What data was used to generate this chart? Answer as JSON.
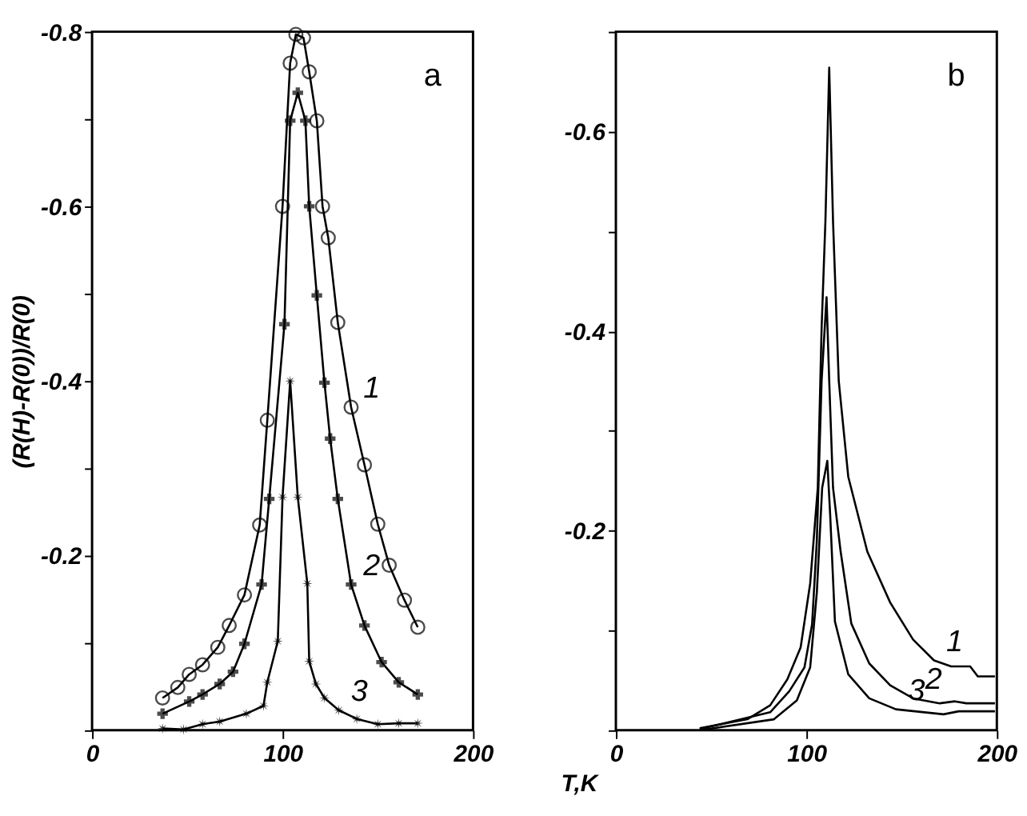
{
  "chart_data": [
    {
      "type": "line",
      "ylabel": "(R(H)-R(0))/R(0)",
      "xlim": [
        0,
        200
      ],
      "ylim": [
        0,
        -0.8
      ],
      "xticks": [
        0,
        100,
        200
      ],
      "yticks": [
        {
          "value": 0,
          "label": null
        },
        {
          "value": -0.1,
          "label": null
        },
        -0.2,
        {
          "value": -0.3,
          "label": null
        },
        -0.4,
        {
          "value": -0.5,
          "label": null
        },
        -0.6,
        {
          "value": -0.7,
          "label": null
        },
        -0.8
      ],
      "grid": false,
      "line_style": "solid",
      "series": [
        {
          "name": "1",
          "color": "#000000",
          "marker": "circle",
          "x": [
            37,
            45,
            51,
            58,
            66,
            72,
            80,
            88,
            92,
            100,
            104,
            107,
            111,
            114,
            118,
            121,
            124,
            129,
            136,
            143,
            150,
            156,
            164,
            171
          ],
          "values": [
            -0.037,
            -0.049,
            -0.064,
            -0.075,
            -0.095,
            -0.12,
            -0.155,
            -0.235,
            -0.355,
            -0.6,
            -0.764,
            -0.797,
            -0.793,
            -0.754,
            -0.698,
            -0.6,
            -0.564,
            -0.467,
            -0.37,
            -0.304,
            -0.236,
            -0.189,
            -0.149,
            -0.118
          ]
        },
        {
          "name": "2",
          "color": "#000000",
          "marker": "cross",
          "x": [
            37,
            51,
            58,
            67,
            74,
            80,
            89,
            93,
            101,
            104,
            108,
            112,
            114,
            118,
            122,
            125,
            129,
            136,
            143,
            152,
            161,
            171
          ],
          "values": [
            -0.019,
            -0.033,
            -0.041,
            -0.053,
            -0.067,
            -0.099,
            -0.167,
            -0.265,
            -0.465,
            -0.698,
            -0.73,
            -0.698,
            -0.6,
            -0.498,
            -0.398,
            -0.334,
            -0.265,
            -0.167,
            -0.12,
            -0.078,
            -0.055,
            -0.041
          ]
        },
        {
          "name": "3",
          "color": "#000000",
          "marker": "star",
          "x": [
            37,
            48,
            58,
            67,
            81,
            90,
            92,
            97.5,
            100,
            104,
            108,
            113,
            114,
            117.5,
            122,
            129.5,
            139,
            150,
            161,
            171
          ],
          "values": [
            -0.002,
            -0.001,
            -0.007,
            -0.01,
            -0.019,
            -0.028,
            -0.055,
            -0.102,
            -0.267,
            -0.4,
            -0.267,
            -0.168,
            -0.079,
            -0.053,
            -0.037,
            -0.023,
            -0.013,
            -0.007,
            -0.008,
            -0.008
          ]
        }
      ],
      "annotations": [
        "a"
      ]
    },
    {
      "type": "line",
      "xlabel": "T,K",
      "xlim": [
        0,
        200
      ],
      "ylim": [
        0,
        -0.7
      ],
      "xticks": [
        0,
        100,
        200
      ],
      "yticks": [
        {
          "value": 0,
          "label": null
        },
        {
          "value": -0.1,
          "label": null
        },
        -0.2,
        {
          "value": -0.3,
          "label": null
        },
        -0.4,
        {
          "value": -0.5,
          "label": null
        },
        -0.6,
        {
          "value": -0.7,
          "label": null
        }
      ],
      "grid": false,
      "line_style": "solid",
      "marker": "none",
      "series": [
        {
          "name": "1",
          "color": "#000000",
          "x": [
            44,
            69,
            81,
            90,
            97,
            102,
            106,
            108,
            110,
            112,
            114,
            117,
            122,
            132,
            144,
            156,
            167,
            176,
            186,
            190,
            199
          ],
          "values": [
            -0.002,
            -0.011,
            -0.025,
            -0.051,
            -0.083,
            -0.147,
            -0.243,
            -0.403,
            -0.51,
            -0.664,
            -0.51,
            -0.35,
            -0.254,
            -0.179,
            -0.128,
            -0.091,
            -0.07,
            -0.064,
            -0.064,
            -0.054,
            -0.054
          ]
        },
        {
          "name": "2",
          "color": "#000000",
          "x": [
            44,
            81,
            91,
            99,
            103,
            105.5,
            108,
            110.6,
            112,
            114,
            118,
            123.6,
            133,
            144,
            156,
            170,
            178,
            184,
            199
          ],
          "values": [
            -0.001,
            -0.018,
            -0.039,
            -0.063,
            -0.106,
            -0.19,
            -0.35,
            -0.434,
            -0.35,
            -0.243,
            -0.179,
            -0.107,
            -0.067,
            -0.045,
            -0.032,
            -0.027,
            -0.029,
            -0.027,
            -0.027
          ]
        },
        {
          "name": "3",
          "color": "#000000",
          "x": [
            44,
            83,
            95,
            102,
            105.5,
            108.3,
            111,
            112.5,
            115,
            122,
            133,
            147,
            172,
            180,
            199
          ],
          "values": [
            0,
            -0.011,
            -0.03,
            -0.063,
            -0.138,
            -0.243,
            -0.27,
            -0.216,
            -0.109,
            -0.056,
            -0.032,
            -0.021,
            -0.016,
            -0.019,
            -0.019
          ]
        }
      ],
      "annotations": [
        "b"
      ]
    }
  ]
}
